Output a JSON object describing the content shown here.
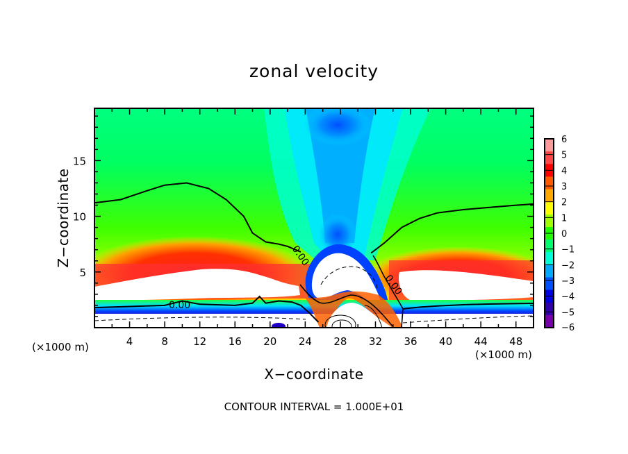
{
  "chart_data": {
    "type": "heatmap",
    "title": "zonal velocity",
    "xlabel": "X−coordinate",
    "ylabel": "Z−coordinate",
    "x_unit_label": "(×1000 m)",
    "x_unit_label_right": "(×1000 m)",
    "footer": "CONTOUR INTERVAL = 1.000E+01",
    "xlim": [
      0,
      50
    ],
    "ylim": [
      0,
      19.7
    ],
    "x_ticks": [
      4,
      8,
      12,
      16,
      20,
      24,
      28,
      32,
      36,
      40,
      44,
      48
    ],
    "x_tick_labels": [
      "4",
      "8",
      "12",
      "16",
      "20",
      "24",
      "28",
      "32",
      "36",
      "40",
      "44",
      "48"
    ],
    "y_ticks": [
      5,
      10,
      15
    ],
    "y_tick_labels": [
      "5",
      "10",
      "15"
    ],
    "colorbar": {
      "range": [
        -6,
        6
      ],
      "tick_values": [
        6,
        5,
        4,
        3,
        2,
        1,
        0,
        -1,
        -2,
        -3,
        -4,
        -5,
        -6
      ],
      "tick_labels": [
        "6",
        "5",
        "4",
        "3",
        "2",
        "1",
        "0",
        "−1",
        "−2",
        "−3",
        "−4",
        "−5",
        "−6"
      ],
      "colors": [
        "#ff9a9a",
        "#ff4848",
        "#ff0000",
        "#ff5a00",
        "#ffa800",
        "#ffff00",
        "#a0ff00",
        "#20ff00",
        "#00ff70",
        "#00ffd8",
        "#00a8ff",
        "#0050ff",
        "#0000e0",
        "#3000a8",
        "#7800a8"
      ]
    },
    "contour_labels": [
      "0.00",
      "0.00",
      "0.00"
    ],
    "zero_contour_upper": {
      "left": [
        [
          0,
          11.2
        ],
        [
          3,
          11.5
        ],
        [
          6,
          12.3
        ],
        [
          8,
          12.8
        ],
        [
          10.5,
          13.0
        ],
        [
          13,
          12.5
        ],
        [
          15,
          11.5
        ],
        [
          17,
          10.0
        ],
        [
          18,
          8.5
        ],
        [
          19.5,
          7.7
        ],
        [
          21,
          7.5
        ],
        [
          22,
          7.3
        ],
        [
          23.5,
          6.8
        ]
      ],
      "right": [
        [
          31.5,
          6.7
        ],
        [
          33,
          7.6
        ],
        [
          35,
          9.0
        ],
        [
          37,
          9.8
        ],
        [
          39,
          10.3
        ],
        [
          42,
          10.6
        ],
        [
          45,
          10.8
        ],
        [
          48,
          11.0
        ],
        [
          50,
          11.1
        ]
      ]
    },
    "zero_contour_lower": [
      [
        0,
        1.8
      ],
      [
        4,
        1.9
      ],
      [
        8,
        2.0
      ],
      [
        10,
        2.4
      ],
      [
        12,
        2.1
      ],
      [
        16,
        2.0
      ],
      [
        18,
        2.2
      ],
      [
        18.8,
        2.8
      ],
      [
        19.5,
        2.2
      ],
      [
        21,
        2.4
      ],
      [
        22.5,
        2.3
      ],
      [
        23.5,
        2.0
      ],
      [
        24.5,
        1.3
      ],
      [
        25,
        0.9
      ],
      [
        25.5,
        0.5
      ]
    ]
  }
}
